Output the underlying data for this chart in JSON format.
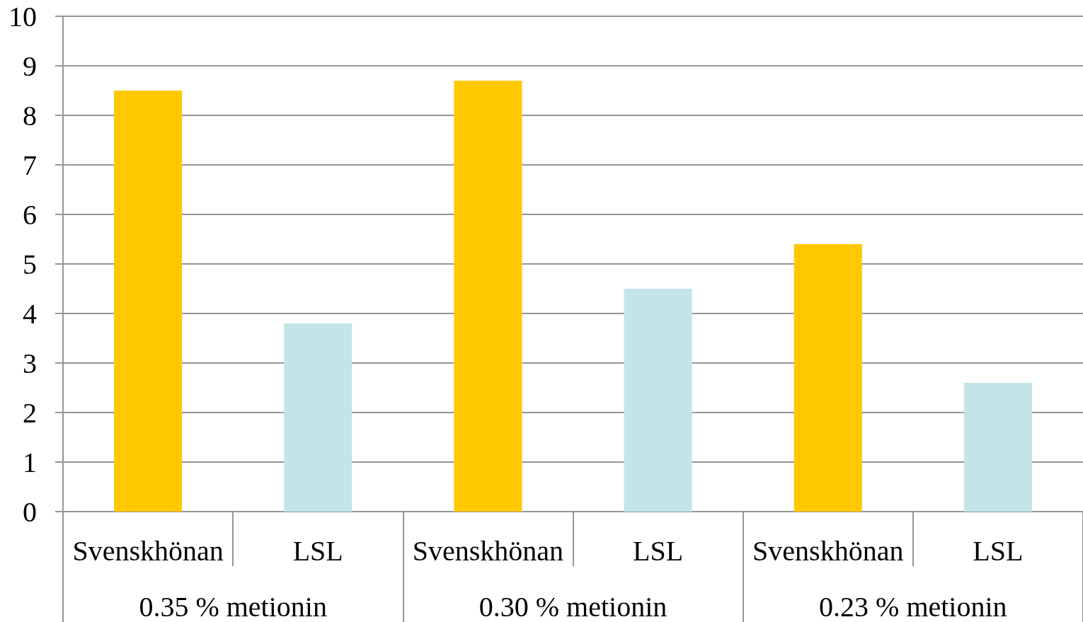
{
  "chart_data": {
    "type": "bar",
    "categories": [
      "Svenskhönan",
      "LSL",
      "Svenskhönan",
      "LSL",
      "Svenskhönan",
      "LSL"
    ],
    "values": [
      8.5,
      3.8,
      8.7,
      4.5,
      5.4,
      2.6
    ],
    "colors": [
      "#ffc800",
      "#c3e5e7",
      "#ffc800",
      "#c3e5e7",
      "#ffc800",
      "#c3e5e7"
    ],
    "annotations": [
      "0.35 % metionin",
      "0.30 % metionin",
      "0.23 % metionin"
    ],
    "ylim": [
      0,
      10
    ],
    "yticks": [
      0,
      1,
      2,
      3,
      4,
      5,
      6,
      7,
      8,
      9,
      10
    ],
    "grid": "y"
  }
}
